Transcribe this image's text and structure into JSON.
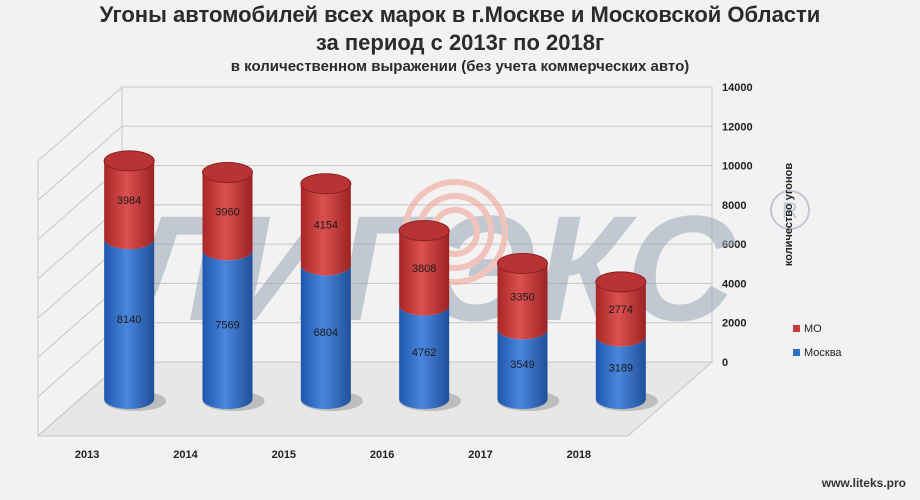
{
  "title_line1": "Угоны автомобилей всех марок в г.Москве и Московской Области",
  "title_line2": "за период с 2013г по 2018г",
  "subtitle": "в количественном выражении (без учета коммерческих авто)",
  "watermark_text": "ЛИГЭКС",
  "watermark_mark": "®",
  "footer": "www.liteks.pro",
  "colors": {
    "moscow": "#2f6fc8",
    "mo": "#c93a3a",
    "grid": "#c7c7c7",
    "watermark": "#9aa6b8"
  },
  "chart_data": {
    "type": "bar",
    "stacked": true,
    "categories": [
      "2013",
      "2014",
      "2015",
      "2016",
      "2017",
      "2018"
    ],
    "series": [
      {
        "name": "Москва",
        "values": [
          8140,
          7569,
          6804,
          4762,
          3549,
          3189
        ]
      },
      {
        "name": "МО",
        "values": [
          3984,
          3960,
          4154,
          3808,
          3350,
          2774
        ]
      }
    ],
    "ylabel": "количество угонов",
    "ylim": [
      0,
      14000
    ],
    "yticks": [
      "0",
      "2000",
      "4000",
      "6000",
      "8000",
      "10000",
      "12000",
      "14000"
    ],
    "grid": true,
    "legend_position": "right"
  }
}
